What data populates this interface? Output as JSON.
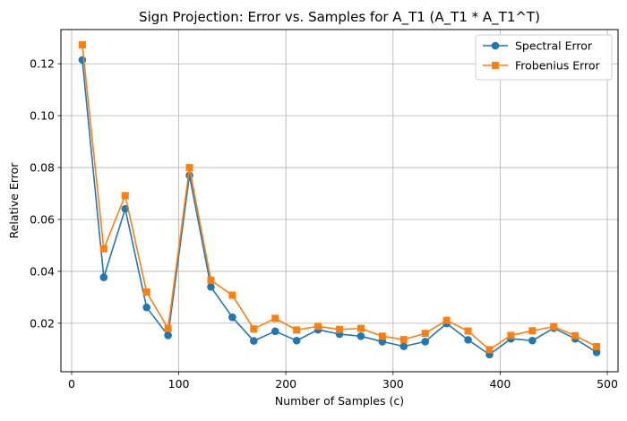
{
  "chart_data": {
    "type": "line",
    "title": "Sign Projection: Error vs. Samples for A_T1 (A_T1 * A_T1^T)",
    "xlabel": "Number of Samples (c)",
    "ylabel": "Relative Error",
    "xlim": [
      -10,
      510
    ],
    "ylim": [
      0.0013,
      0.1332
    ],
    "xticks": [
      0,
      100,
      200,
      300,
      400,
      500
    ],
    "xtick_labels": [
      "0",
      "100",
      "200",
      "300",
      "400",
      "500"
    ],
    "yticks": [
      0.02,
      0.04,
      0.06,
      0.08,
      0.1,
      0.12
    ],
    "ytick_labels": [
      "0.02",
      "0.04",
      "0.06",
      "0.08",
      "0.10",
      "0.12"
    ],
    "grid": true,
    "legend_position": "top-right",
    "x": [
      10,
      30,
      50,
      70,
      90,
      110,
      130,
      150,
      170,
      190,
      210,
      230,
      250,
      270,
      290,
      310,
      330,
      350,
      370,
      390,
      410,
      430,
      450,
      470,
      490
    ],
    "series": [
      {
        "name": "Spectral Error",
        "color": "#1f77b4",
        "marker": "circle",
        "values": [
          0.1215,
          0.0377,
          0.0641,
          0.0261,
          0.0153,
          0.077,
          0.034,
          0.0223,
          0.0132,
          0.0169,
          0.0133,
          0.0175,
          0.0158,
          0.015,
          0.0129,
          0.0111,
          0.0129,
          0.0199,
          0.0136,
          0.0079,
          0.014,
          0.0133,
          0.0181,
          0.014,
          0.0088
        ]
      },
      {
        "name": "Frobenius Error",
        "color": "#ff7f0e",
        "marker": "square",
        "values": [
          0.1273,
          0.0487,
          0.0692,
          0.032,
          0.018,
          0.08,
          0.0366,
          0.0308,
          0.0178,
          0.0219,
          0.0174,
          0.0188,
          0.0176,
          0.018,
          0.015,
          0.0137,
          0.0161,
          0.0211,
          0.017,
          0.0098,
          0.0153,
          0.0171,
          0.0187,
          0.0152,
          0.011
        ]
      }
    ]
  }
}
